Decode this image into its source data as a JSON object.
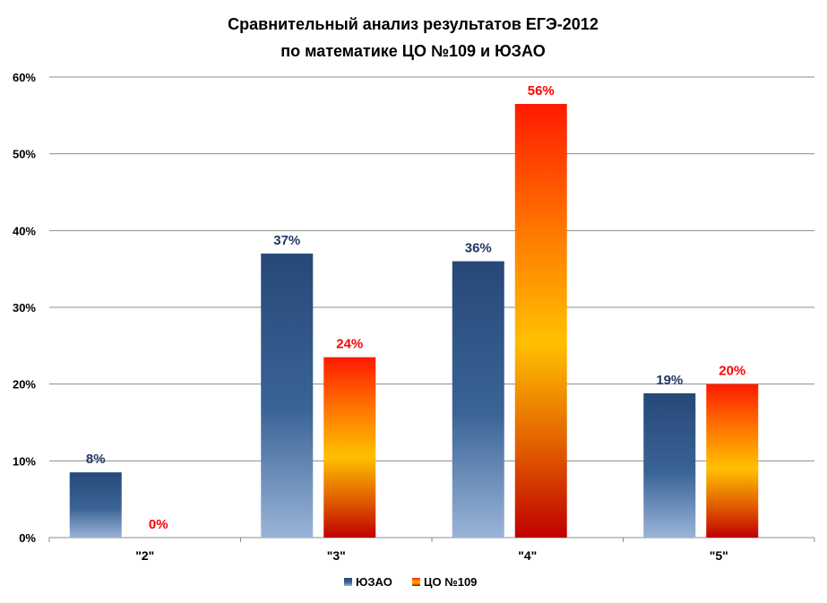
{
  "chart_data": {
    "type": "bar",
    "title_lines": [
      "Сравнительный анализ результатов ЕГЭ-2012",
      "по математике ЦО №109 и ЮЗАО"
    ],
    "categories": [
      "\"2\"",
      "\"3\"",
      "\"4\"",
      "\"5\""
    ],
    "series": [
      {
        "name": "ЮЗАО",
        "values": [
          8.5,
          37,
          36,
          18.8
        ],
        "labels": [
          "8%",
          "37%",
          "36%",
          "19%"
        ],
        "color": "#2e5a8c",
        "label_color": "#1f3864"
      },
      {
        "name": "ЦО №109",
        "values": [
          0,
          23.5,
          56.5,
          20
        ],
        "labels": [
          "0%",
          "24%",
          "56%",
          "20%"
        ],
        "color": "#ff6600",
        "label_color": "#ff0000"
      }
    ],
    "ylim": [
      0,
      60
    ],
    "yticks": [
      0,
      10,
      20,
      30,
      40,
      50,
      60
    ],
    "ytick_labels": [
      "0%",
      "10%",
      "20%",
      "30%",
      "40%",
      "50%",
      "60%"
    ],
    "grid": true,
    "legend": "bottom"
  }
}
